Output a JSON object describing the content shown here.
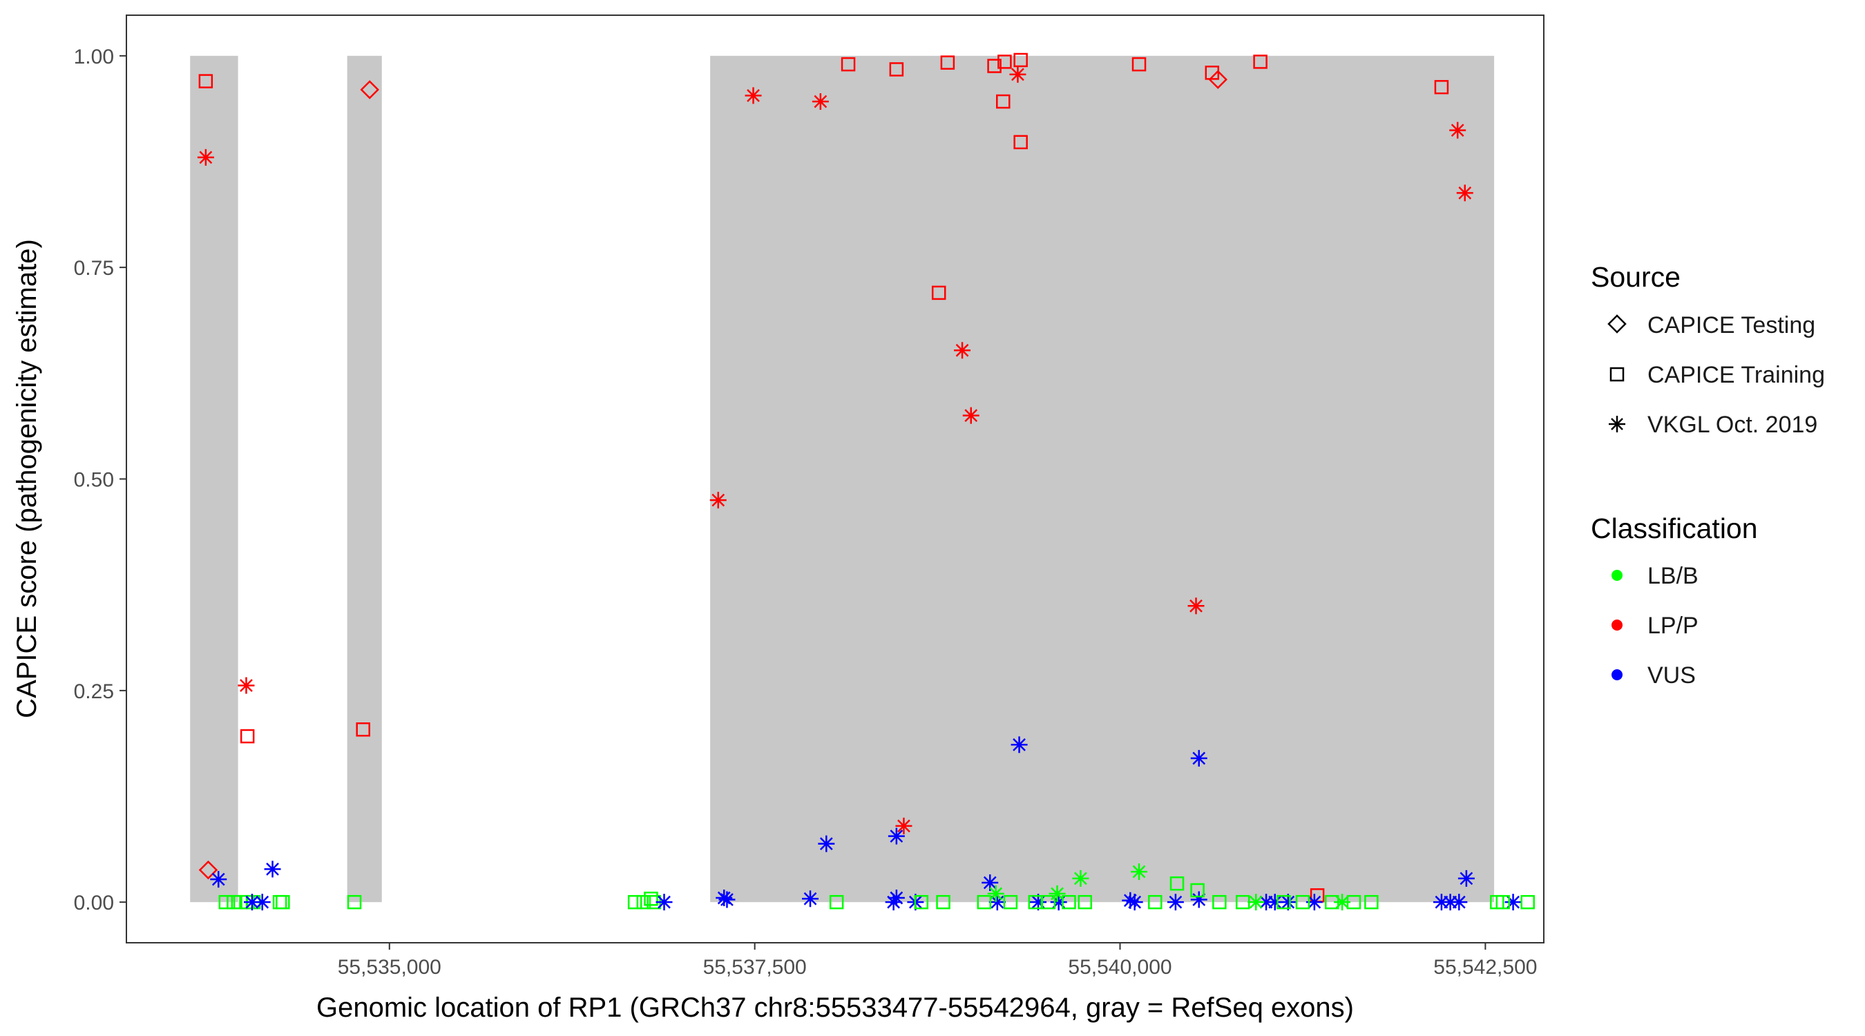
{
  "chart_data": {
    "type": "scatter",
    "title": "",
    "xlabel": "Genomic location of RP1 (GRCh37 chr8:55533477-55542964, gray = RefSeq exons)",
    "ylabel": "CAPICE score (pathogenicity estimate)",
    "xlim": [
      533200,
      542900
    ],
    "ylim": [
      -0.048,
      1.048
    ],
    "x_ticks": [
      535000,
      537500,
      540000,
      542500
    ],
    "x_tick_labels": [
      "55,535,000",
      "55,537,500",
      "55,540,000",
      "55,542,500"
    ],
    "y_ticks": [
      0,
      0.25,
      0.5,
      0.75,
      1
    ],
    "y_tick_labels": [
      "0.00",
      "0.25",
      "0.50",
      "0.75",
      "1.00"
    ],
    "grid": false,
    "exons": [
      {
        "start": 533636,
        "end": 533964
      },
      {
        "start": 534711,
        "end": 534948
      },
      {
        "start": 537195,
        "end": 542560
      }
    ],
    "legend": {
      "placement": "right",
      "source_title": "Source",
      "source_items": [
        {
          "label": "CAPICE Testing",
          "shape": "diamond"
        },
        {
          "label": "CAPICE Training",
          "shape": "square"
        },
        {
          "label": "VKGL Oct. 2019",
          "shape": "asterisk"
        }
      ],
      "class_title": "Classification",
      "class_items": [
        {
          "label": "LB/B",
          "color": "#00ff00"
        },
        {
          "label": "LP/P",
          "color": "#ff0000"
        },
        {
          "label": "VUS",
          "color": "#0000ff"
        }
      ]
    },
    "colors": {
      "LB/B": "#00ff00",
      "LP/P": "#ff0000",
      "VUS": "#0000ff",
      "exon": "#c8c8c8"
    },
    "points": [
      {
        "x": 533743,
        "y": 0.97,
        "shape": "square",
        "cls": "LP/P"
      },
      {
        "x": 533743,
        "y": 0.88,
        "shape": "asterisk",
        "cls": "LP/P"
      },
      {
        "x": 534020,
        "y": 0.256,
        "shape": "asterisk",
        "cls": "LP/P"
      },
      {
        "x": 534028,
        "y": 0.196,
        "shape": "square",
        "cls": "LP/P"
      },
      {
        "x": 533760,
        "y": 0.038,
        "shape": "diamond",
        "cls": "LP/P"
      },
      {
        "x": 533830,
        "y": 0.027,
        "shape": "asterisk",
        "cls": "VUS"
      },
      {
        "x": 534200,
        "y": 0.039,
        "shape": "asterisk",
        "cls": "VUS"
      },
      {
        "x": 533880,
        "y": 0.0,
        "shape": "square",
        "cls": "LB/B"
      },
      {
        "x": 533935,
        "y": 0.0,
        "shape": "square",
        "cls": "LB/B"
      },
      {
        "x": 533980,
        "y": 0.0,
        "shape": "square",
        "cls": "LB/B"
      },
      {
        "x": 534030,
        "y": 0.0,
        "shape": "square",
        "cls": "LB/B"
      },
      {
        "x": 534070,
        "y": 0.0,
        "shape": "square",
        "cls": "LB/B"
      },
      {
        "x": 534250,
        "y": 0.0,
        "shape": "square",
        "cls": "LB/B"
      },
      {
        "x": 534270,
        "y": 0.0,
        "shape": "square",
        "cls": "LB/B"
      },
      {
        "x": 534060,
        "y": 0.0,
        "shape": "asterisk",
        "cls": "VUS"
      },
      {
        "x": 534130,
        "y": 0.0,
        "shape": "asterisk",
        "cls": "VUS"
      },
      {
        "x": 534865,
        "y": 0.96,
        "shape": "diamond",
        "cls": "LP/P"
      },
      {
        "x": 534820,
        "y": 0.204,
        "shape": "square",
        "cls": "LP/P"
      },
      {
        "x": 534760,
        "y": 0.0,
        "shape": "square",
        "cls": "LB/B"
      },
      {
        "x": 536680,
        "y": 0.0,
        "shape": "square",
        "cls": "LB/B"
      },
      {
        "x": 536740,
        "y": 0.0,
        "shape": "square",
        "cls": "LB/B"
      },
      {
        "x": 536790,
        "y": 0.004,
        "shape": "square",
        "cls": "LB/B"
      },
      {
        "x": 536810,
        "y": 0.0,
        "shape": "square",
        "cls": "LB/B"
      },
      {
        "x": 536880,
        "y": 0.0,
        "shape": "asterisk",
        "cls": "VUS"
      },
      {
        "x": 537250,
        "y": 0.475,
        "shape": "asterisk",
        "cls": "LP/P"
      },
      {
        "x": 537490,
        "y": 0.953,
        "shape": "asterisk",
        "cls": "LP/P"
      },
      {
        "x": 537950,
        "y": 0.946,
        "shape": "asterisk",
        "cls": "LP/P"
      },
      {
        "x": 538140,
        "y": 0.99,
        "shape": "square",
        "cls": "LP/P"
      },
      {
        "x": 538470,
        "y": 0.984,
        "shape": "square",
        "cls": "LP/P"
      },
      {
        "x": 538760,
        "y": 0.72,
        "shape": "square",
        "cls": "LP/P"
      },
      {
        "x": 538820,
        "y": 0.992,
        "shape": "square",
        "cls": "LP/P"
      },
      {
        "x": 538920,
        "y": 0.652,
        "shape": "asterisk",
        "cls": "LP/P"
      },
      {
        "x": 538980,
        "y": 0.575,
        "shape": "asterisk",
        "cls": "LP/P"
      },
      {
        "x": 539140,
        "y": 0.988,
        "shape": "square",
        "cls": "LP/P"
      },
      {
        "x": 539200,
        "y": 0.946,
        "shape": "square",
        "cls": "LP/P"
      },
      {
        "x": 539210,
        "y": 0.993,
        "shape": "square",
        "cls": "LP/P"
      },
      {
        "x": 539300,
        "y": 0.978,
        "shape": "asterisk",
        "cls": "LP/P"
      },
      {
        "x": 539320,
        "y": 0.995,
        "shape": "square",
        "cls": "LP/P"
      },
      {
        "x": 539320,
        "y": 0.898,
        "shape": "square",
        "cls": "LP/P"
      },
      {
        "x": 540130,
        "y": 0.99,
        "shape": "square",
        "cls": "LP/P"
      },
      {
        "x": 540630,
        "y": 0.98,
        "shape": "square",
        "cls": "LP/P"
      },
      {
        "x": 540670,
        "y": 0.972,
        "shape": "diamond",
        "cls": "LP/P"
      },
      {
        "x": 540960,
        "y": 0.993,
        "shape": "square",
        "cls": "LP/P"
      },
      {
        "x": 542200,
        "y": 0.963,
        "shape": "square",
        "cls": "LP/P"
      },
      {
        "x": 542310,
        "y": 0.912,
        "shape": "asterisk",
        "cls": "LP/P"
      },
      {
        "x": 542360,
        "y": 0.838,
        "shape": "asterisk",
        "cls": "LP/P"
      },
      {
        "x": 540520,
        "y": 0.35,
        "shape": "asterisk",
        "cls": "LP/P"
      },
      {
        "x": 538520,
        "y": 0.09,
        "shape": "asterisk",
        "cls": "LP/P"
      },
      {
        "x": 541350,
        "y": 0.008,
        "shape": "square",
        "cls": "LP/P"
      },
      {
        "x": 539310,
        "y": 0.186,
        "shape": "asterisk",
        "cls": "VUS"
      },
      {
        "x": 540540,
        "y": 0.17,
        "shape": "asterisk",
        "cls": "VUS"
      },
      {
        "x": 537990,
        "y": 0.069,
        "shape": "asterisk",
        "cls": "VUS"
      },
      {
        "x": 538470,
        "y": 0.078,
        "shape": "asterisk",
        "cls": "VUS"
      },
      {
        "x": 539110,
        "y": 0.023,
        "shape": "asterisk",
        "cls": "VUS"
      },
      {
        "x": 542370,
        "y": 0.028,
        "shape": "asterisk",
        "cls": "VUS"
      },
      {
        "x": 537290,
        "y": 0.005,
        "shape": "asterisk",
        "cls": "VUS"
      },
      {
        "x": 537310,
        "y": 0.003,
        "shape": "asterisk",
        "cls": "VUS"
      },
      {
        "x": 537880,
        "y": 0.004,
        "shape": "asterisk",
        "cls": "VUS"
      },
      {
        "x": 538450,
        "y": 0.0,
        "shape": "asterisk",
        "cls": "VUS"
      },
      {
        "x": 538470,
        "y": 0.005,
        "shape": "asterisk",
        "cls": "VUS"
      },
      {
        "x": 538600,
        "y": 0.0,
        "shape": "asterisk",
        "cls": "VUS"
      },
      {
        "x": 539160,
        "y": 0.0,
        "shape": "asterisk",
        "cls": "VUS"
      },
      {
        "x": 539440,
        "y": 0.0,
        "shape": "asterisk",
        "cls": "VUS"
      },
      {
        "x": 539580,
        "y": 0.0,
        "shape": "asterisk",
        "cls": "VUS"
      },
      {
        "x": 540070,
        "y": 0.002,
        "shape": "asterisk",
        "cls": "VUS"
      },
      {
        "x": 540100,
        "y": 0.0,
        "shape": "asterisk",
        "cls": "VUS"
      },
      {
        "x": 540380,
        "y": 0.0,
        "shape": "asterisk",
        "cls": "VUS"
      },
      {
        "x": 540540,
        "y": 0.003,
        "shape": "asterisk",
        "cls": "VUS"
      },
      {
        "x": 541000,
        "y": 0.0,
        "shape": "asterisk",
        "cls": "VUS"
      },
      {
        "x": 541060,
        "y": 0.0,
        "shape": "asterisk",
        "cls": "VUS"
      },
      {
        "x": 541150,
        "y": 0.0,
        "shape": "asterisk",
        "cls": "VUS"
      },
      {
        "x": 541330,
        "y": 0.0,
        "shape": "asterisk",
        "cls": "VUS"
      },
      {
        "x": 542200,
        "y": 0.0,
        "shape": "asterisk",
        "cls": "VUS"
      },
      {
        "x": 542260,
        "y": 0.0,
        "shape": "asterisk",
        "cls": "VUS"
      },
      {
        "x": 542320,
        "y": 0.0,
        "shape": "asterisk",
        "cls": "VUS"
      },
      {
        "x": 542690,
        "y": 0.0,
        "shape": "asterisk",
        "cls": "VUS"
      },
      {
        "x": 539730,
        "y": 0.028,
        "shape": "asterisk",
        "cls": "LB/B"
      },
      {
        "x": 540130,
        "y": 0.036,
        "shape": "asterisk",
        "cls": "LB/B"
      },
      {
        "x": 539570,
        "y": 0.01,
        "shape": "asterisk",
        "cls": "LB/B"
      },
      {
        "x": 539150,
        "y": 0.01,
        "shape": "asterisk",
        "cls": "LB/B"
      },
      {
        "x": 540390,
        "y": 0.022,
        "shape": "square",
        "cls": "LB/B"
      },
      {
        "x": 540530,
        "y": 0.014,
        "shape": "square",
        "cls": "LB/B"
      },
      {
        "x": 538060,
        "y": 0.0,
        "shape": "square",
        "cls": "LB/B"
      },
      {
        "x": 538640,
        "y": 0.0,
        "shape": "square",
        "cls": "LB/B"
      },
      {
        "x": 538790,
        "y": 0.0,
        "shape": "square",
        "cls": "LB/B"
      },
      {
        "x": 539070,
        "y": 0.0,
        "shape": "square",
        "cls": "LB/B"
      },
      {
        "x": 539250,
        "y": 0.0,
        "shape": "square",
        "cls": "LB/B"
      },
      {
        "x": 539420,
        "y": 0.0,
        "shape": "square",
        "cls": "LB/B"
      },
      {
        "x": 539510,
        "y": 0.0,
        "shape": "square",
        "cls": "LB/B"
      },
      {
        "x": 539650,
        "y": 0.0,
        "shape": "square",
        "cls": "LB/B"
      },
      {
        "x": 539760,
        "y": 0.0,
        "shape": "square",
        "cls": "LB/B"
      },
      {
        "x": 540240,
        "y": 0.0,
        "shape": "square",
        "cls": "LB/B"
      },
      {
        "x": 540680,
        "y": 0.0,
        "shape": "square",
        "cls": "LB/B"
      },
      {
        "x": 540840,
        "y": 0.0,
        "shape": "square",
        "cls": "LB/B"
      },
      {
        "x": 540930,
        "y": 0.0,
        "shape": "asterisk",
        "cls": "LB/B"
      },
      {
        "x": 541120,
        "y": 0.0,
        "shape": "square",
        "cls": "LB/B"
      },
      {
        "x": 541250,
        "y": 0.0,
        "shape": "square",
        "cls": "LB/B"
      },
      {
        "x": 541450,
        "y": 0.0,
        "shape": "square",
        "cls": "LB/B"
      },
      {
        "x": 541520,
        "y": 0.0,
        "shape": "asterisk",
        "cls": "LB/B"
      },
      {
        "x": 541600,
        "y": 0.0,
        "shape": "square",
        "cls": "LB/B"
      },
      {
        "x": 541720,
        "y": 0.0,
        "shape": "square",
        "cls": "LB/B"
      },
      {
        "x": 542580,
        "y": 0.0,
        "shape": "square",
        "cls": "LB/B"
      },
      {
        "x": 542620,
        "y": 0.0,
        "shape": "square",
        "cls": "LB/B"
      },
      {
        "x": 542790,
        "y": 0.0,
        "shape": "square",
        "cls": "LB/B"
      }
    ]
  }
}
